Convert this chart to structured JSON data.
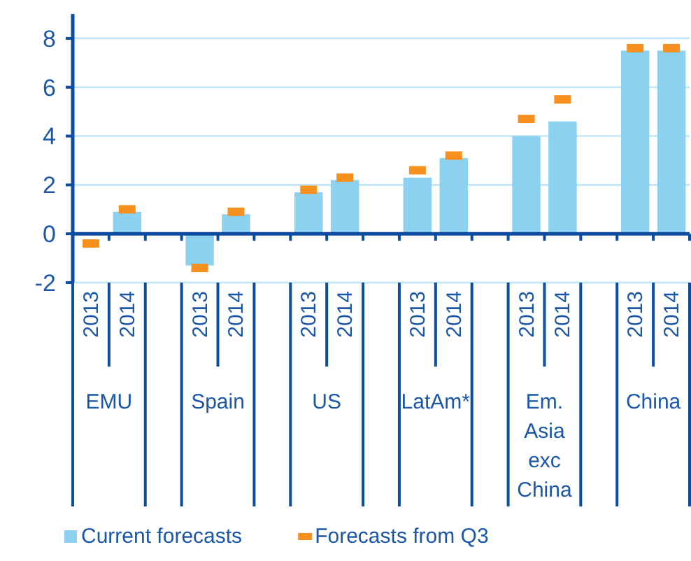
{
  "chart_data": {
    "type": "bar",
    "categories": [
      "2013",
      "2014",
      null,
      "2013",
      "2014",
      null,
      "2013",
      "2014",
      null,
      "2013",
      "2014",
      null,
      "2013",
      "2014",
      null,
      "2013",
      "2014"
    ],
    "series": [
      {
        "name": "Current forecasts",
        "color": "#8dd1f1",
        "values": [
          null,
          0.9,
          null,
          -1.3,
          0.8,
          null,
          1.7,
          2.2,
          null,
          2.3,
          3.1,
          null,
          4.0,
          4.6,
          null,
          7.5,
          7.5
        ]
      },
      {
        "name": "Forecasts from Q3",
        "type": "scatter",
        "marker": "square",
        "color": "#f7901e",
        "values": [
          -0.4,
          1.0,
          null,
          -1.4,
          0.9,
          null,
          1.8,
          2.3,
          null,
          2.6,
          3.2,
          null,
          4.7,
          5.5,
          null,
          7.6,
          7.6
        ]
      }
    ],
    "annotations": [
      "EMU",
      "Spain",
      "US",
      "LatAm*",
      "Em. Asia exc China",
      "China"
    ],
    "ylim": [
      -2,
      9
    ],
    "yticks": [
      -2,
      0,
      2,
      4,
      6,
      8
    ],
    "grid": "y",
    "legend": "bottom",
    "ref_lines": [
      {
        "axis": "y",
        "value": 0,
        "color": "#0c4da2"
      }
    ]
  }
}
